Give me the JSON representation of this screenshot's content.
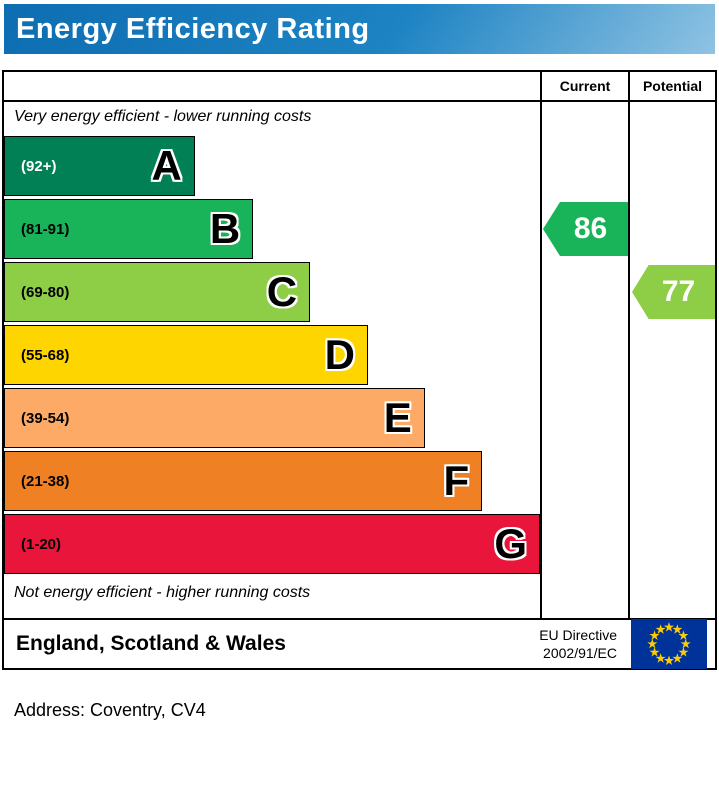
{
  "chart_data": {
    "type": "bar",
    "title": "Energy Efficiency Rating",
    "top_note": "Very energy efficient - lower running costs",
    "bottom_note": "Not energy efficient - higher running costs",
    "columns": [
      "Current",
      "Potential"
    ],
    "bands": [
      {
        "letter": "A",
        "range": "(92+)",
        "min": 92,
        "max": 100,
        "color": "#008054",
        "range_color": "#ffffff",
        "width_pct": 35.6
      },
      {
        "letter": "B",
        "range": "(81-91)",
        "min": 81,
        "max": 91,
        "color": "#19b459",
        "range_color": "#000000",
        "width_pct": 46.5
      },
      {
        "letter": "C",
        "range": "(69-80)",
        "min": 69,
        "max": 80,
        "color": "#8dce46",
        "range_color": "#000000",
        "width_pct": 57.1
      },
      {
        "letter": "D",
        "range": "(55-68)",
        "min": 55,
        "max": 68,
        "color": "#ffd500",
        "range_color": "#000000",
        "width_pct": 67.9
      },
      {
        "letter": "E",
        "range": "(39-54)",
        "min": 39,
        "max": 54,
        "color": "#fcaa65",
        "range_color": "#000000",
        "width_pct": 78.5
      },
      {
        "letter": "F",
        "range": "(21-38)",
        "min": 21,
        "max": 38,
        "color": "#ef8023",
        "range_color": "#000000",
        "width_pct": 89.2
      },
      {
        "letter": "G",
        "range": "(1-20)",
        "min": 1,
        "max": 20,
        "color": "#e9153b",
        "range_color": "#000000",
        "width_pct": 100
      }
    ],
    "current": {
      "value": 86,
      "band": "B",
      "band_index": 1,
      "color": "#19b459"
    },
    "potential": {
      "value": 77,
      "band": "C",
      "band_index": 2,
      "color": "#8dce46"
    }
  },
  "footer": {
    "region": "England, Scotland & Wales",
    "directive_line1": "EU Directive",
    "directive_line2": "2002/91/EC"
  },
  "address": "Address: Coventry, CV4",
  "colors": {
    "title_bar": "#0d6db1",
    "title_bar_mid": "#1d83c3",
    "title_bar_light": "#8fc3e3",
    "eu_flag_blue": "#003399",
    "eu_flag_star": "#ffcc00"
  }
}
